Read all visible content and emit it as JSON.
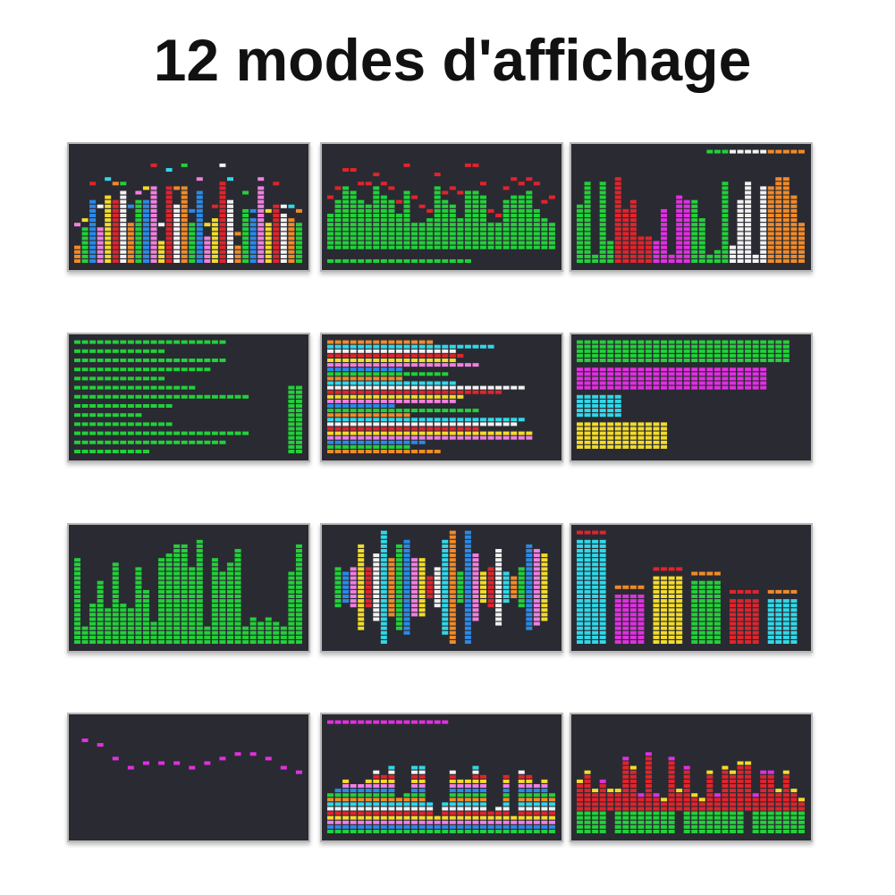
{
  "header": {
    "title": "12 modes d'affichage"
  }
}
